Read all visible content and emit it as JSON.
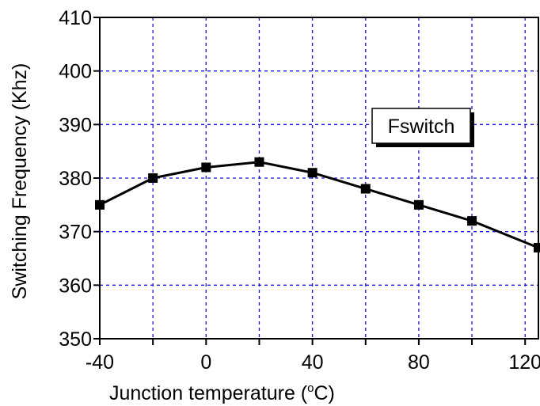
{
  "chart_data": {
    "type": "line",
    "xlabel_parts": [
      "Junction temperature (",
      "o",
      "C)"
    ],
    "ylabel": "Switching Frequency (Khz)",
    "xlim": [
      -40,
      125
    ],
    "ylim": [
      350,
      410
    ],
    "x_ticks": [
      -40,
      0,
      40,
      80,
      120
    ],
    "x_tick_labels": [
      "-40",
      "0",
      "40",
      "80",
      "120"
    ],
    "x_grid": [
      -40,
      -20,
      0,
      20,
      40,
      60,
      80,
      100,
      120
    ],
    "y_ticks": [
      350,
      360,
      370,
      380,
      390,
      400,
      410
    ],
    "y_tick_labels": [
      "350",
      "360",
      "370",
      "380",
      "390",
      "400",
      "410"
    ],
    "grid": true,
    "legend": {
      "placement": "upper-right",
      "label": "Fswitch"
    },
    "series": [
      {
        "name": "Fswitch",
        "color": "#000000",
        "marker": "square",
        "x": [
          -40,
          -20,
          0,
          20,
          40,
          60,
          80,
          100,
          125
        ],
        "y": [
          375,
          380,
          382,
          383,
          381,
          378,
          375,
          372,
          367
        ]
      }
    ],
    "colors": {
      "grid": "#1a1ad0",
      "axis": "#000000",
      "line": "#000000"
    }
  }
}
